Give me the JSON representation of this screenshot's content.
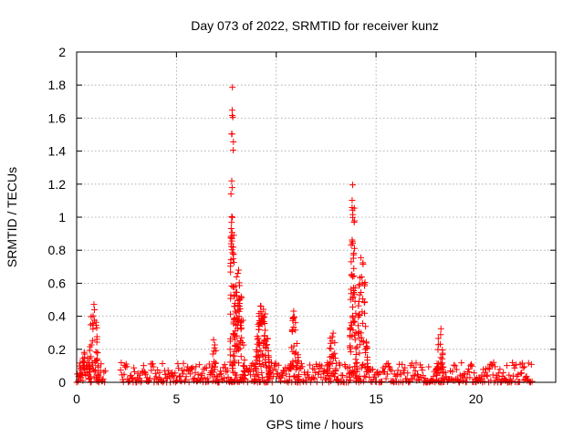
{
  "chart_data": {
    "type": "scatter",
    "title": "Day 073 of 2022, SRMTID for receiver kunz",
    "xlabel": "GPS time / hours",
    "ylabel": "SRMTID / TECUs",
    "xlim": [
      0,
      24
    ],
    "ylim": [
      0,
      2
    ],
    "xticks": [
      0,
      5,
      10,
      15,
      20
    ],
    "yticks": [
      0,
      0.2,
      0.4,
      0.6,
      0.8,
      1,
      1.2,
      1.4,
      1.6,
      1.8,
      2
    ],
    "xtick_labels": [
      "0",
      "5",
      "10",
      "15",
      "20"
    ],
    "ytick_labels": [
      "0",
      "0.2",
      "0.4",
      "0.6",
      "0.8",
      "1",
      "1.2",
      "1.4",
      "1.6",
      "1.8",
      "2"
    ],
    "grid": true,
    "marker": "plus",
    "color": "#ff0000",
    "data_ranges_hours": [
      [
        0.0,
        1.45
      ],
      [
        2.2,
        22.85
      ]
    ],
    "baseline_max": 0.12,
    "features": [
      {
        "center": 0.85,
        "width": 0.25,
        "peak": 0.55,
        "n": 45
      },
      {
        "center": 0.4,
        "width": 0.3,
        "peak": 0.2,
        "n": 25
      },
      {
        "center": 7.8,
        "width": 0.12,
        "peak": 1.84,
        "n": 60
      },
      {
        "center": 8.1,
        "width": 0.35,
        "peak": 0.7,
        "n": 80
      },
      {
        "center": 9.3,
        "width": 0.4,
        "peak": 0.5,
        "n": 90
      },
      {
        "center": 10.9,
        "width": 0.25,
        "peak": 0.46,
        "n": 35
      },
      {
        "center": 12.8,
        "width": 0.3,
        "peak": 0.32,
        "n": 30
      },
      {
        "center": 13.85,
        "width": 0.18,
        "peak": 1.22,
        "n": 65
      },
      {
        "center": 14.3,
        "width": 0.3,
        "peak": 0.82,
        "n": 55
      },
      {
        "center": 18.2,
        "width": 0.2,
        "peak": 0.35,
        "n": 30
      },
      {
        "center": 6.9,
        "width": 0.2,
        "peak": 0.27,
        "n": 15
      }
    ]
  }
}
